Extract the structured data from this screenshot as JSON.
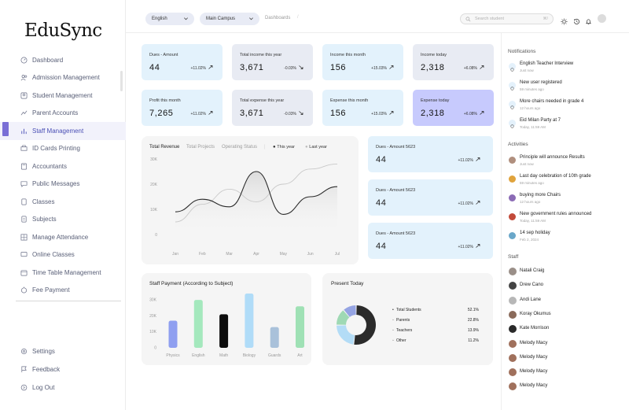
{
  "app": {
    "logo": "EduSync"
  },
  "sidebar": {
    "items": [
      {
        "label": "Dashboard",
        "icon": "dashboard-icon"
      },
      {
        "label": "Admission Management",
        "icon": "users-icon"
      },
      {
        "label": "Student Management",
        "icon": "user-icon"
      },
      {
        "label": "Parent Accounts",
        "icon": "users-icon"
      },
      {
        "label": "Staff Management",
        "icon": "chart-icon"
      },
      {
        "label": "ID Cards Printing",
        "icon": "printer-icon"
      },
      {
        "label": "Accountants",
        "icon": "calculator-icon"
      },
      {
        "label": "Public Messages",
        "icon": "message-icon"
      },
      {
        "label": "Classes",
        "icon": "document-icon"
      },
      {
        "label": "Subjects",
        "icon": "document-icon"
      },
      {
        "label": "Manage Attendance",
        "icon": "grid-icon"
      },
      {
        "label": "Online Classes",
        "icon": "monitor-icon"
      },
      {
        "label": "Time Table Management",
        "icon": "calendar-icon"
      },
      {
        "label": "Fee Payment",
        "icon": "coin-icon"
      }
    ],
    "active": "Staff Management",
    "bottom": [
      {
        "label": "Settings",
        "icon": "gear-icon"
      },
      {
        "label": "Feedback",
        "icon": "flag-icon"
      },
      {
        "label": "Log Out",
        "icon": "logout-icon"
      }
    ]
  },
  "topbar": {
    "language": "English",
    "campus": "Main Campus",
    "breadcrumb": "Dashboards",
    "breadcrumb_sep": "/",
    "search_placeholder": "Search student",
    "search_shortcut": "⌘/"
  },
  "stats": [
    {
      "label": "Dues - Amount",
      "value": "44",
      "change": "+11.02%",
      "color": "blue"
    },
    {
      "label": "Total income this year",
      "value": "3,671",
      "change": "-0.03%",
      "color": "grey"
    },
    {
      "label": "Income this month",
      "value": "156",
      "change": "+15.03%",
      "color": "blue"
    },
    {
      "label": "Income today",
      "value": "2,318",
      "change": "+6.08%",
      "color": "grey"
    },
    {
      "label": "Profit this month",
      "value": "7,265",
      "change": "+11.02%",
      "color": "blue"
    },
    {
      "label": "Total expense this year",
      "value": "3,671",
      "change": "-0.03%",
      "color": "grey"
    },
    {
      "label": "Expense this month",
      "value": "156",
      "change": "+15.03%",
      "color": "blue"
    },
    {
      "label": "Expense today",
      "value": "2,318",
      "change": "+6.08%",
      "color": "purple"
    }
  ],
  "revenue": {
    "tabs": [
      "Total Revenue",
      "Total Projects",
      "Operating Status"
    ],
    "separator": "|",
    "legend": [
      "This year",
      "Last year"
    ]
  },
  "dues_cards": [
    {
      "label": "Dues - Amount 5623",
      "value": "44",
      "change": "+11.02%"
    },
    {
      "label": "Dues - Amount 5623",
      "value": "44",
      "change": "+11.02%"
    },
    {
      "label": "Dues - Amount 5623",
      "value": "44",
      "change": "+11.02%"
    }
  ],
  "staff_payment": {
    "title": "Staff Payment (According to Subject)"
  },
  "present_today": {
    "title": "Present Today",
    "rows": [
      {
        "label": "Total Students",
        "value": "52.1%",
        "bullet": "•"
      },
      {
        "label": "Parents",
        "value": "22.8%",
        "bullet": "◦"
      },
      {
        "label": "Teachers",
        "value": "13.9%",
        "bullet": "◦"
      },
      {
        "label": "Other",
        "value": "11.2%",
        "bullet": "◦"
      }
    ]
  },
  "chart_data": [
    {
      "type": "line",
      "title": "Total Revenue",
      "categories": [
        "Jan",
        "Feb",
        "Mar",
        "Apr",
        "May",
        "Jun",
        "Jul"
      ],
      "yticks": [
        "0",
        "10K",
        "20K",
        "30K"
      ],
      "ylim": [
        0,
        30000
      ],
      "series": [
        {
          "name": "This year",
          "values": [
            9000,
            14000,
            11000,
            25000,
            8000,
            15000,
            19000
          ],
          "color": "#2b2b2b"
        },
        {
          "name": "Last year",
          "values": [
            5000,
            12000,
            18000,
            13000,
            20000,
            26000,
            28000
          ],
          "color": "#c9c9c9"
        }
      ]
    },
    {
      "type": "bar",
      "title": "Staff Payment (According to Subject)",
      "categories": [
        "Physics",
        "English",
        "Math",
        "Biology",
        "Guards",
        "Art"
      ],
      "values": [
        17000,
        30000,
        21000,
        34000,
        13000,
        26000
      ],
      "colors": [
        "#8f9ff0",
        "#a4e8bd",
        "#0d0d0d",
        "#b0dcf8",
        "#a9c1da",
        "#9fe1b5"
      ],
      "yticks": [
        "0",
        "10K",
        "20K",
        "30K"
      ],
      "ylim": [
        0,
        34000
      ]
    },
    {
      "type": "pie",
      "title": "Present Today",
      "categories": [
        "Total Students",
        "Parents",
        "Teachers",
        "Other"
      ],
      "values": [
        52.1,
        22.8,
        13.9,
        11.2
      ],
      "colors": [
        "#2b2b2b",
        "#b3dcf6",
        "#9fd9b4",
        "#95a4e3"
      ]
    }
  ],
  "right": {
    "notifications_title": "Notifications",
    "notifications": [
      {
        "text": "English Teacher Interview",
        "sub": "Just now",
        "icon": "bug-icon"
      },
      {
        "text": "New user registered",
        "sub": "59 minutes ago",
        "icon": "user-icon"
      },
      {
        "text": "More chairs needed in grade 4",
        "sub": "12 hours ago",
        "icon": "bug-icon"
      },
      {
        "text": "Eid Milan Party at 7",
        "sub": "Today, 11:59 AM",
        "icon": "broadcast-icon"
      }
    ],
    "activities_title": "Activities",
    "activities": [
      {
        "text": "Principle will announce Results",
        "sub": "Just now"
      },
      {
        "text": "Last day celebration of 10th grade",
        "sub": "59 minutes ago"
      },
      {
        "text": "buying more Chairs",
        "sub": "12 hours ago"
      },
      {
        "text": "New government rules announced",
        "sub": "Today, 11:59 AM"
      },
      {
        "text": "14 sep holiday",
        "sub": "Feb 2, 2024"
      }
    ],
    "staff_title": "Staff",
    "staff": [
      "Natali Craig",
      "Drew Cano",
      "Andi Lane",
      "Koray Okumus",
      "Kate Morrison",
      "Melody Macy",
      "Melody Macy",
      "Melody Macy",
      "Melody Macy"
    ]
  }
}
